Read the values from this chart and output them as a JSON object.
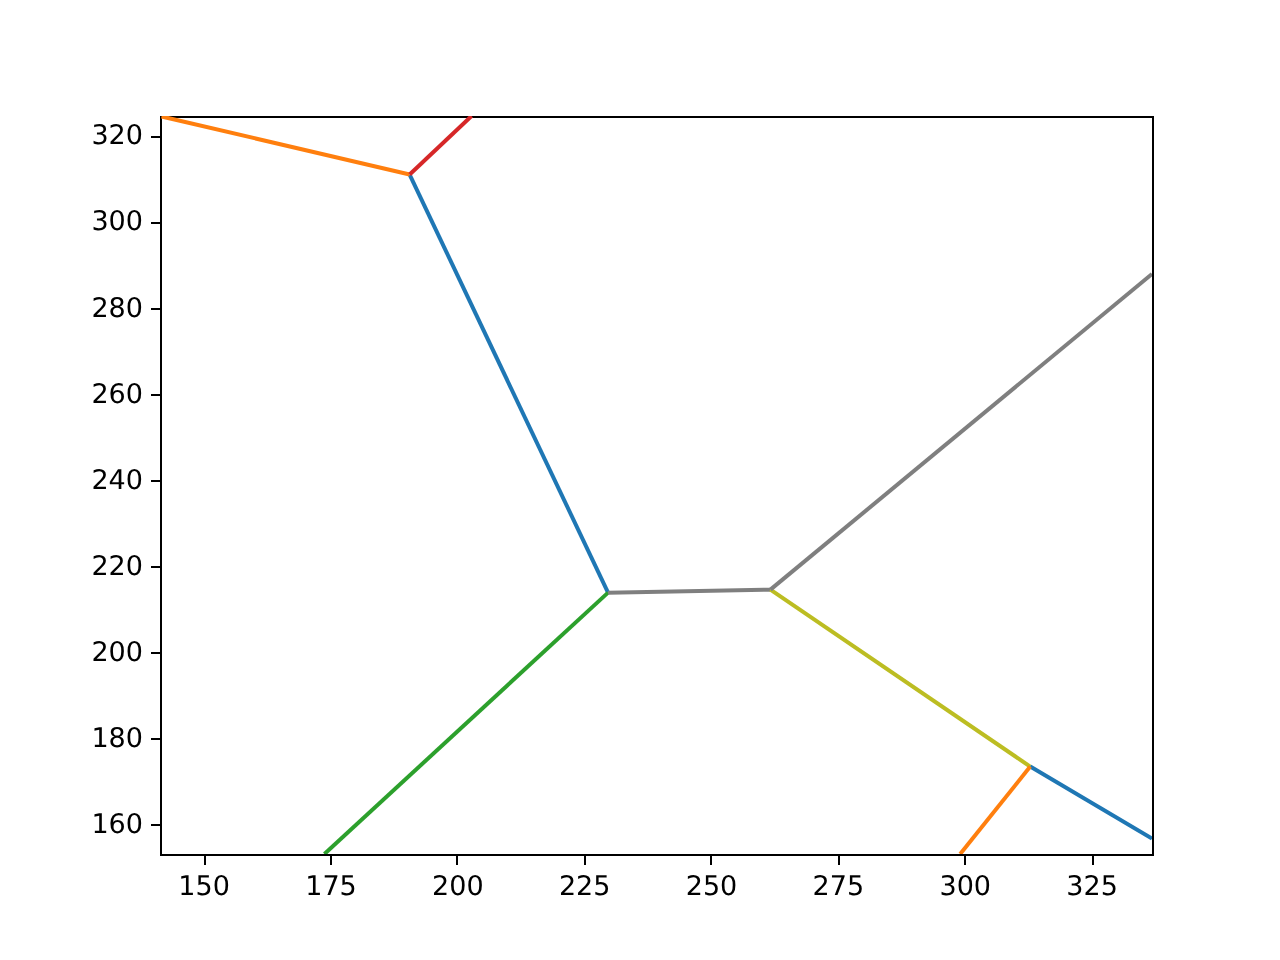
{
  "chart_data": {
    "type": "line",
    "xlim": [
      141.5,
      337.0
    ],
    "ylim": [
      153.1,
      324.5
    ],
    "xticks": [
      150,
      175,
      200,
      225,
      250,
      275,
      300,
      325
    ],
    "yticks": [
      160,
      180,
      200,
      220,
      240,
      260,
      280,
      300,
      320
    ],
    "series": [
      {
        "color": "#1f77b4",
        "x": [
          190.7,
          229.8
        ],
        "values": [
          310.9,
          213.8
        ]
      },
      {
        "color": "#ff7f0e",
        "x": [
          190.7,
          141.8
        ],
        "values": [
          310.9,
          324.4
        ]
      },
      {
        "color": "#2ca02c",
        "x": [
          229.8,
          173.9
        ],
        "values": [
          213.8,
          153.1
        ]
      },
      {
        "color": "#d62728",
        "x": [
          190.7,
          202.9
        ],
        "values": [
          310.9,
          324.5
        ]
      },
      {
        "color": "#7f7f7f",
        "x": [
          229.8,
          261.8
        ],
        "values": [
          213.8,
          214.5
        ]
      },
      {
        "color": "#bcbd22",
        "x": [
          261.8,
          313.0
        ],
        "values": [
          214.5,
          173.4
        ]
      },
      {
        "color": "#1f77b4",
        "x": [
          313.0,
          337.0
        ],
        "values": [
          173.4,
          156.7
        ]
      },
      {
        "color": "#ff7f0e",
        "x": [
          313.0,
          299.2
        ],
        "values": [
          173.4,
          153.1
        ]
      },
      {
        "color": "#7f7f7f",
        "x": [
          261.8,
          337.0
        ],
        "values": [
          214.5,
          287.8
        ]
      }
    ]
  }
}
